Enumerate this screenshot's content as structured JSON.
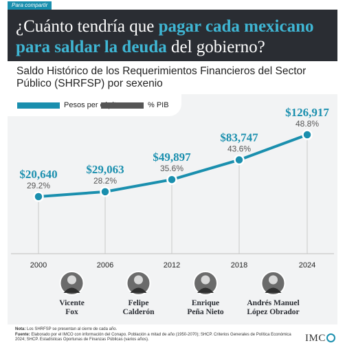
{
  "share_tag": "Para compartir",
  "headline": {
    "part1": "¿Cuánto tendría que ",
    "highlight": "pagar cada mexicano para saldar la deuda",
    "part2": " del gobierno?"
  },
  "subtitle": "Saldo Histórico de los Requerimientos Financieros del Sector Público (SHRFSP) por sexenio",
  "colors": {
    "accent": "#1a8fae",
    "dark": "#2a2d33",
    "gray": "#555555",
    "panel": "#f2f3f4"
  },
  "chart_data": {
    "type": "line",
    "x": [
      "2000",
      "2006",
      "2012",
      "2018",
      "2024"
    ],
    "series": [
      {
        "name": "Pesos per cápita",
        "values": [
          20640,
          29063,
          49897,
          83747,
          126917
        ],
        "labels": [
          "$20,640",
          "$29,063",
          "$49,897",
          "$83,747",
          "$126,917"
        ]
      },
      {
        "name": "% PIB",
        "values": [
          29.2,
          28.2,
          35.6,
          43.6,
          48.8
        ],
        "labels": [
          "29.2%",
          "28.2%",
          "35.6%",
          "43.6%",
          "48.8%"
        ]
      }
    ],
    "presidents": [
      {
        "first": "Vicente",
        "last": "Fox"
      },
      {
        "first": "Felipe",
        "last": "Calderón"
      },
      {
        "first": "Enrique",
        "last": "Peña Nieto"
      },
      {
        "first": "Andrés Manuel",
        "last": "López Obrador"
      }
    ]
  },
  "footnote": {
    "nota_label": "Nota:",
    "nota": " Los SHRFSP se presentan al cierre de cada año.",
    "fuente_label": "Fuente:",
    "fuente": " Elaborado por el IMCO con información del Conapo. Población a mitad de año (1950-2070); SHCP. Criterios Generales de Política Económica 2024; SHCP. Estadísticas Oportunas de Finanzas Públicas (varios años)."
  },
  "logo": {
    "text": "IMC"
  }
}
